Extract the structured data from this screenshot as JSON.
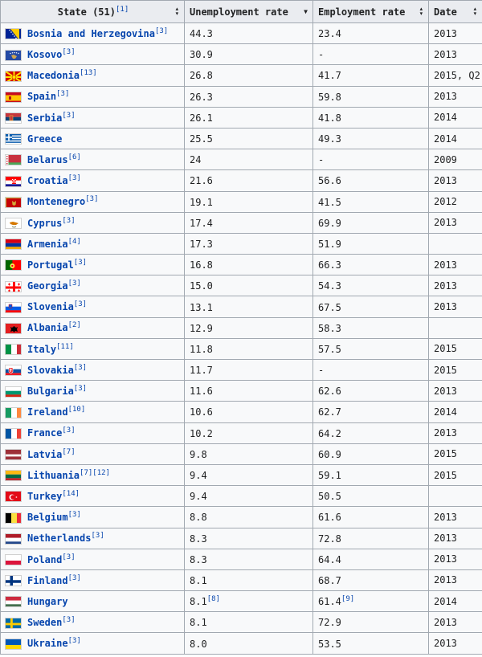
{
  "headers": {
    "state": "State (51)",
    "state_ref": "[1]",
    "unemployment": "Unemployment rate",
    "employment": "Employment rate",
    "date": "Date"
  },
  "rows": [
    {
      "name": "Bosnia and Herzegovina",
      "ref": "[3]",
      "unemp": "44.3",
      "unemp_ref": "",
      "emp": "23.4",
      "emp_ref": "",
      "date": "2013",
      "flag": "bosnia-flag"
    },
    {
      "name": "Kosovo",
      "ref": "[3]",
      "unemp": "30.9",
      "unemp_ref": "",
      "emp": "-",
      "emp_ref": "",
      "date": "2013",
      "flag": "kosovo-flag"
    },
    {
      "name": "Macedonia",
      "ref": "[13]",
      "unemp": "26.8",
      "unemp_ref": "",
      "emp": "41.7",
      "emp_ref": "",
      "date": "2015, Q2",
      "flag": "macedonia-flag"
    },
    {
      "name": "Spain",
      "ref": "[3]",
      "unemp": "26.3",
      "unemp_ref": "",
      "emp": "59.8",
      "emp_ref": "",
      "date": "2013",
      "flag": "spain-flag"
    },
    {
      "name": "Serbia",
      "ref": "[3]",
      "unemp": "26.1",
      "unemp_ref": "",
      "emp": "41.8",
      "emp_ref": "",
      "date": "2014",
      "flag": "serbia-flag"
    },
    {
      "name": "Greece",
      "ref": "",
      "unemp": "25.5",
      "unemp_ref": "",
      "emp": "49.3",
      "emp_ref": "",
      "date": "2014",
      "flag": "greece-flag"
    },
    {
      "name": "Belarus",
      "ref": "[6]",
      "unemp": "24",
      "unemp_ref": "",
      "emp": "-",
      "emp_ref": "",
      "date": "2009",
      "flag": "belarus-flag"
    },
    {
      "name": "Croatia",
      "ref": "[3]",
      "unemp": "21.6",
      "unemp_ref": "",
      "emp": "56.6",
      "emp_ref": "",
      "date": "2013",
      "flag": "croatia-flag"
    },
    {
      "name": "Montenegro",
      "ref": "[3]",
      "unemp": "19.1",
      "unemp_ref": "",
      "emp": "41.5",
      "emp_ref": "",
      "date": "2012",
      "flag": "montenegro-flag"
    },
    {
      "name": "Cyprus",
      "ref": "[3]",
      "unemp": "17.4",
      "unemp_ref": "",
      "emp": "69.9",
      "emp_ref": "",
      "date": "2013",
      "flag": "cyprus-flag"
    },
    {
      "name": "Armenia",
      "ref": "[4]",
      "unemp": "17.3",
      "unemp_ref": "",
      "emp": "51.9",
      "emp_ref": "",
      "date": "",
      "flag": "armenia-flag"
    },
    {
      "name": "Portugal",
      "ref": "[3]",
      "unemp": "16.8",
      "unemp_ref": "",
      "emp": "66.3",
      "emp_ref": "",
      "date": "2013",
      "flag": "portugal-flag"
    },
    {
      "name": "Georgia",
      "ref": "[3]",
      "unemp": "15.0",
      "unemp_ref": "",
      "emp": "54.3",
      "emp_ref": "",
      "date": "2013",
      "flag": "georgia-flag"
    },
    {
      "name": "Slovenia",
      "ref": "[3]",
      "unemp": "13.1",
      "unemp_ref": "",
      "emp": "67.5",
      "emp_ref": "",
      "date": "2013",
      "flag": "slovenia-flag"
    },
    {
      "name": "Albania",
      "ref": "[2]",
      "unemp": "12.9",
      "unemp_ref": "",
      "emp": "58.3",
      "emp_ref": "",
      "date": "",
      "flag": "albania-flag"
    },
    {
      "name": "Italy",
      "ref": "[11]",
      "unemp": "11.8",
      "unemp_ref": "",
      "emp": "57.5",
      "emp_ref": "",
      "date": "2015",
      "flag": "italy-flag"
    },
    {
      "name": "Slovakia",
      "ref": "[3]",
      "unemp": "11.7",
      "unemp_ref": "",
      "emp": "-",
      "emp_ref": "",
      "date": "2015",
      "flag": "slovakia-flag"
    },
    {
      "name": "Bulgaria",
      "ref": "[3]",
      "unemp": "11.6",
      "unemp_ref": "",
      "emp": "62.6",
      "emp_ref": "",
      "date": "2013",
      "flag": "bulgaria-flag"
    },
    {
      "name": "Ireland",
      "ref": "[10]",
      "unemp": "10.6",
      "unemp_ref": "",
      "emp": "62.7",
      "emp_ref": "",
      "date": "2014",
      "flag": "ireland-flag"
    },
    {
      "name": "France",
      "ref": "[3]",
      "unemp": "10.2",
      "unemp_ref": "",
      "emp": "64.2",
      "emp_ref": "",
      "date": "2013",
      "flag": "france-flag"
    },
    {
      "name": "Latvia",
      "ref": "[7]",
      "unemp": "9.8",
      "unemp_ref": "",
      "emp": "60.9",
      "emp_ref": "",
      "date": "2015",
      "flag": "latvia-flag"
    },
    {
      "name": "Lithuania",
      "ref": "[7][12]",
      "unemp": "9.4",
      "unemp_ref": "",
      "emp": "59.1",
      "emp_ref": "",
      "date": "2015",
      "flag": "lithuania-flag"
    },
    {
      "name": "Turkey",
      "ref": "[14]",
      "unemp": "9.4",
      "unemp_ref": "",
      "emp": "50.5",
      "emp_ref": "",
      "date": "",
      "flag": "turkey-flag"
    },
    {
      "name": "Belgium",
      "ref": "[3]",
      "unemp": "8.8",
      "unemp_ref": "",
      "emp": "61.6",
      "emp_ref": "",
      "date": "2013",
      "flag": "belgium-flag"
    },
    {
      "name": "Netherlands",
      "ref": "[3]",
      "unemp": "8.3",
      "unemp_ref": "",
      "emp": "72.8",
      "emp_ref": "",
      "date": "2013",
      "flag": "netherlands-flag"
    },
    {
      "name": "Poland",
      "ref": "[3]",
      "unemp": "8.3",
      "unemp_ref": "",
      "emp": "64.4",
      "emp_ref": "",
      "date": "2013",
      "flag": "poland-flag"
    },
    {
      "name": "Finland",
      "ref": "[3]",
      "unemp": "8.1",
      "unemp_ref": "",
      "emp": "68.7",
      "emp_ref": "",
      "date": "2013",
      "flag": "finland-flag"
    },
    {
      "name": "Hungary",
      "ref": "",
      "unemp": "8.1",
      "unemp_ref": "[8]",
      "emp": "61.4",
      "emp_ref": "[9]",
      "date": "2014",
      "flag": "hungary-flag"
    },
    {
      "name": "Sweden",
      "ref": "[3]",
      "unemp": "8.1",
      "unemp_ref": "",
      "emp": "72.9",
      "emp_ref": "",
      "date": "2013",
      "flag": "sweden-flag"
    },
    {
      "name": "Ukraine",
      "ref": "[3]",
      "unemp": "8.0",
      "unemp_ref": "",
      "emp": "53.5",
      "emp_ref": "",
      "date": "2013",
      "flag": "ukraine-flag"
    }
  ]
}
